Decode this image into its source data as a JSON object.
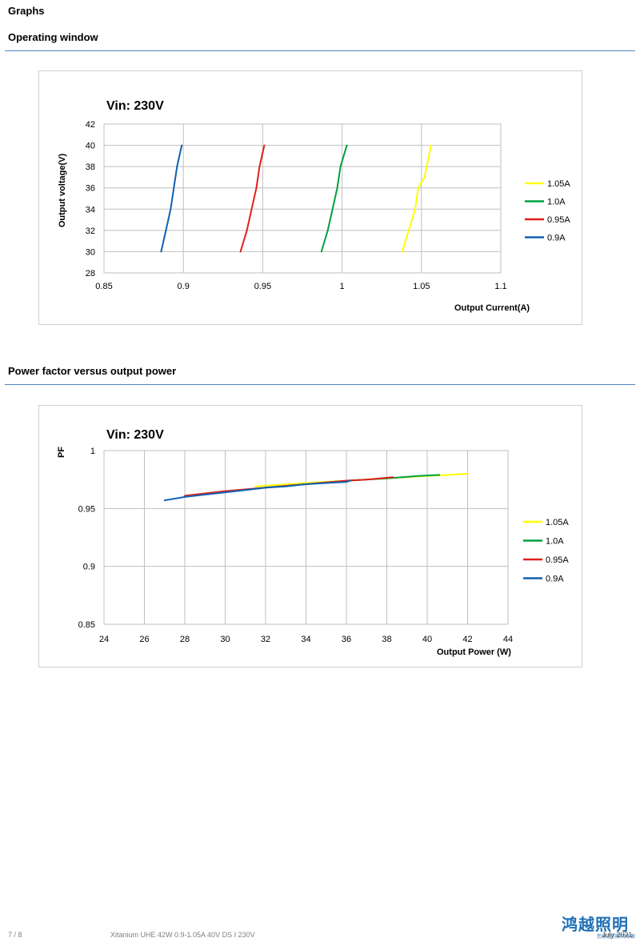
{
  "page": {
    "heading": "Graphs",
    "sections": [
      {
        "title": "Operating window"
      },
      {
        "title": "Power factor versus output power"
      }
    ]
  },
  "footer": {
    "page_number": "7 / 8",
    "product": "Xitanium UHE 42W 0.9-1.05A 40V DS I 230V",
    "date": "July 2021",
    "logo_text": "鸿越照明",
    "logo_sub": "您身边的照明专家"
  },
  "chart_data": [
    {
      "type": "line",
      "title": "Vin: 230V",
      "xlabel": "Output Current(A)",
      "ylabel": "Output voltage(V)",
      "xlim": [
        0.85,
        1.1
      ],
      "ylim": [
        28,
        42
      ],
      "x_ticks": [
        "0.85",
        "0.9",
        "0.95",
        "1",
        "1.05",
        "1.1"
      ],
      "y_ticks": [
        "28",
        "30",
        "32",
        "34",
        "36",
        "38",
        "40",
        "42"
      ],
      "grid": true,
      "legend_position": "right",
      "legend_order": [
        0,
        1,
        2,
        3
      ],
      "series": [
        {
          "name": "1.05A",
          "color": "#ffff00",
          "x": [
            1.038,
            1.042,
            1.046,
            1.048,
            1.052,
            1.056
          ],
          "y": [
            30,
            32,
            34,
            36,
            37,
            40
          ]
        },
        {
          "name": "1.0A",
          "color": "#00a040",
          "x": [
            0.987,
            0.991,
            0.994,
            0.997,
            0.999,
            1.003
          ],
          "y": [
            30,
            32,
            34,
            36,
            38,
            40
          ]
        },
        {
          "name": "0.95A",
          "color": "#e0201c",
          "x": [
            0.936,
            0.94,
            0.943,
            0.946,
            0.948,
            0.951
          ],
          "y": [
            30,
            32,
            34,
            36,
            38,
            40
          ]
        },
        {
          "name": "0.9A",
          "color": "#1060b0",
          "x": [
            0.886,
            0.889,
            0.892,
            0.894,
            0.896,
            0.899
          ],
          "y": [
            30,
            32,
            34,
            36,
            38,
            40
          ]
        }
      ]
    },
    {
      "type": "line",
      "title": "Vin: 230V",
      "xlabel": "Output Power (W)",
      "ylabel": "PF",
      "xlim": [
        24,
        44
      ],
      "ylim": [
        0.85,
        1.0
      ],
      "x_ticks": [
        "24",
        "26",
        "28",
        "30",
        "32",
        "34",
        "36",
        "38",
        "40",
        "42",
        "44"
      ],
      "y_ticks": [
        "0.85",
        "0.9",
        "0.95",
        "1"
      ],
      "grid": true,
      "legend_position": "right",
      "legend_order": [
        0,
        1,
        2,
        3
      ],
      "series": [
        {
          "name": "1.05A",
          "color": "#ffff00",
          "x": [
            31.5,
            34,
            36,
            38,
            40,
            41,
            42
          ],
          "y": [
            0.969,
            0.972,
            0.974,
            0.976,
            0.978,
            0.979,
            0.98
          ]
        },
        {
          "name": "1.0A",
          "color": "#00a040",
          "x": [
            29.5,
            32,
            34,
            36,
            38,
            39.5,
            40.6
          ],
          "y": [
            0.963,
            0.968,
            0.971,
            0.974,
            0.976,
            0.978,
            0.979
          ]
        },
        {
          "name": "0.95A",
          "color": "#e0201c",
          "x": [
            28,
            30,
            32,
            34,
            36,
            37,
            38.3
          ],
          "y": [
            0.961,
            0.965,
            0.968,
            0.971,
            0.974,
            0.975,
            0.977
          ]
        },
        {
          "name": "0.9A",
          "color": "#1060b0",
          "x": [
            27,
            28,
            29,
            30,
            31,
            32,
            33,
            34,
            35,
            36,
            36.2
          ],
          "y": [
            0.957,
            0.96,
            0.962,
            0.964,
            0.966,
            0.968,
            0.969,
            0.971,
            0.972,
            0.973,
            0.974
          ]
        }
      ]
    }
  ]
}
